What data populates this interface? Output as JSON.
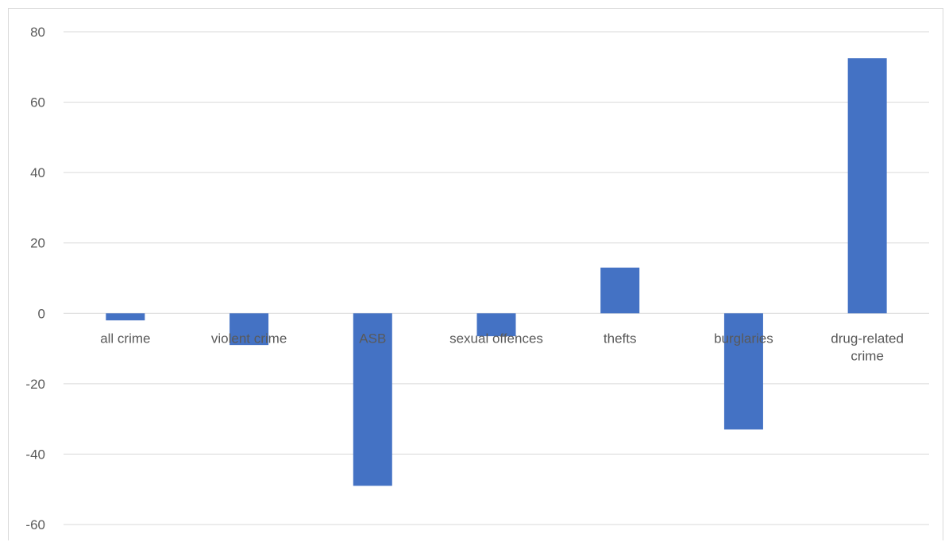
{
  "chart_data": {
    "type": "bar",
    "categories": [
      [
        "all crime"
      ],
      [
        "violent crime"
      ],
      [
        "ASB"
      ],
      [
        "sexual offences"
      ],
      [
        "thefts"
      ],
      [
        "burglaries"
      ],
      [
        "drug-related",
        "crime"
      ]
    ],
    "values": [
      -2,
      -9,
      -49,
      -6.5,
      13,
      -33,
      72.5
    ],
    "yticks": [
      80,
      60,
      40,
      20,
      0,
      -20,
      -40,
      -60
    ],
    "ylim": [
      -60,
      80
    ],
    "grid": true,
    "bar_color": "#4472c4",
    "grid_color": "#d9d9d9",
    "label_color": "#595959"
  }
}
